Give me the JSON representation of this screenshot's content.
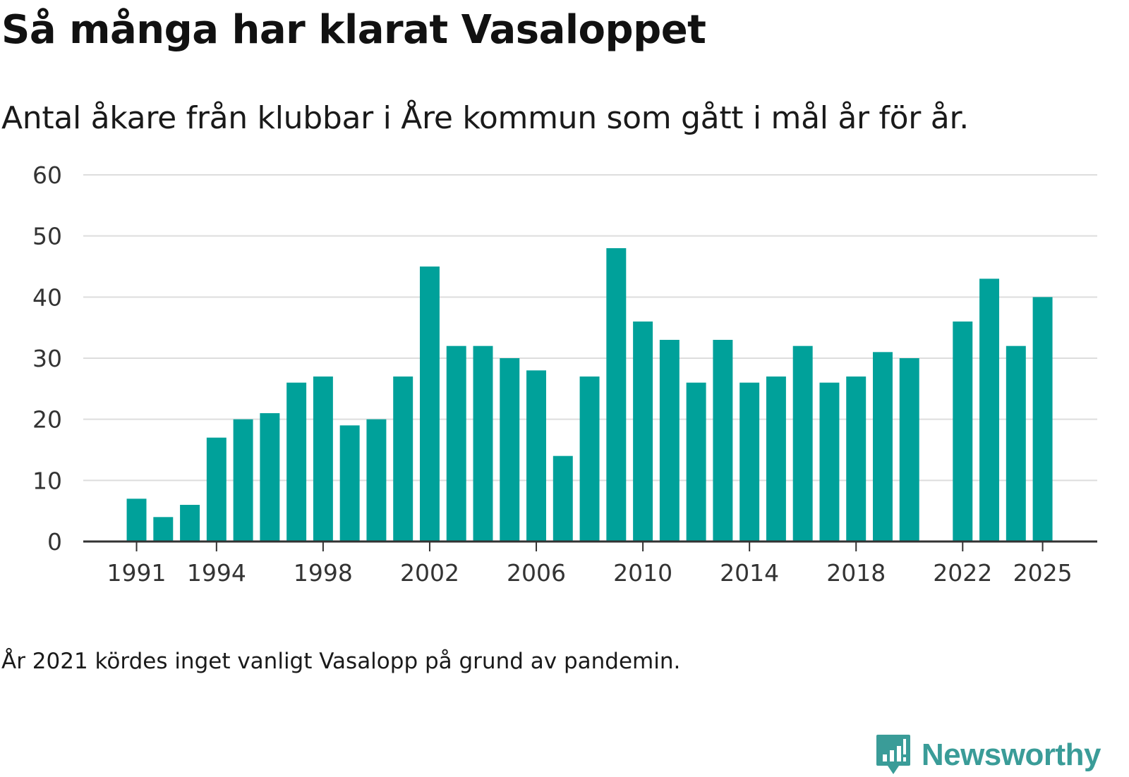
{
  "chart_data": {
    "type": "bar",
    "title": "Så många har klarat Vasaloppet",
    "subtitle": "Antal åkare från klubbar i Åre kommun som gått i mål år för år.",
    "note": "År 2021 kördes inget vanligt Vasalopp på grund av pandemin.",
    "xlabel": "",
    "ylabel": "",
    "ylim": [
      0,
      60
    ],
    "yticks": [
      0,
      10,
      20,
      30,
      40,
      50,
      60
    ],
    "xticks": [
      1991,
      1994,
      1998,
      2002,
      2006,
      2010,
      2014,
      2018,
      2022,
      2025
    ],
    "grid": true,
    "categories": [
      1991,
      1992,
      1993,
      1994,
      1995,
      1996,
      1997,
      1998,
      1999,
      2000,
      2001,
      2002,
      2003,
      2004,
      2005,
      2006,
      2007,
      2008,
      2009,
      2010,
      2011,
      2012,
      2013,
      2014,
      2015,
      2016,
      2017,
      2018,
      2019,
      2020,
      2022,
      2023,
      2024,
      2025
    ],
    "values": [
      7,
      4,
      6,
      17,
      20,
      21,
      26,
      27,
      19,
      20,
      27,
      45,
      32,
      32,
      30,
      28,
      14,
      27,
      48,
      36,
      33,
      26,
      33,
      26,
      27,
      32,
      26,
      27,
      31,
      30,
      36,
      43,
      32,
      40
    ],
    "bar_color": "#00a19a",
    "grid_color": "#dddddd",
    "axis_color": "#333333"
  },
  "brand": {
    "name": "Newsworthy",
    "color": "#3a9c98",
    "icon": "newsworthy-logo-icon"
  }
}
